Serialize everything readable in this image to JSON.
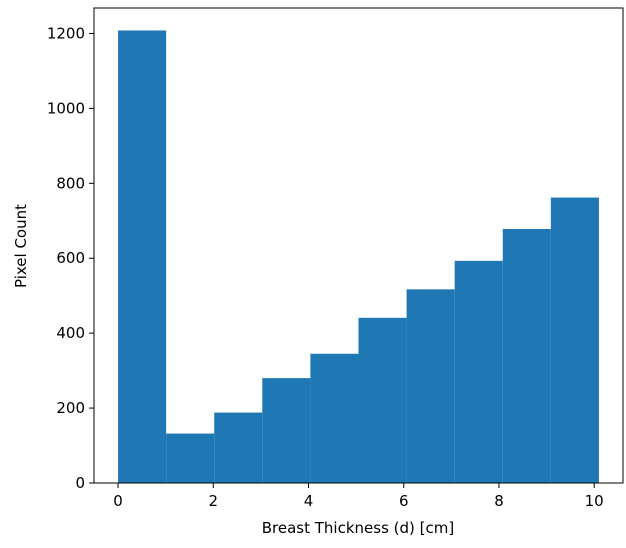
{
  "chart_data": {
    "type": "histogram",
    "xlabel": "Breast Thickness (d) [cm]",
    "ylabel": "Pixel Count",
    "bins": [
      0,
      1.01,
      2.02,
      3.03,
      4.04,
      5.05,
      6.06,
      7.07,
      8.08,
      9.09,
      10.1
    ],
    "values": [
      1208,
      132,
      188,
      280,
      345,
      441,
      517,
      593,
      678,
      762
    ],
    "color": "#1f77b4",
    "xlim": [
      -0.505,
      10.605
    ],
    "xticks": [
      0,
      2,
      4,
      6,
      8,
      10
    ],
    "ylim": [
      0,
      1268
    ],
    "yticks": [
      0,
      200,
      400,
      600,
      800,
      1000,
      1200
    ],
    "grid": false
  }
}
